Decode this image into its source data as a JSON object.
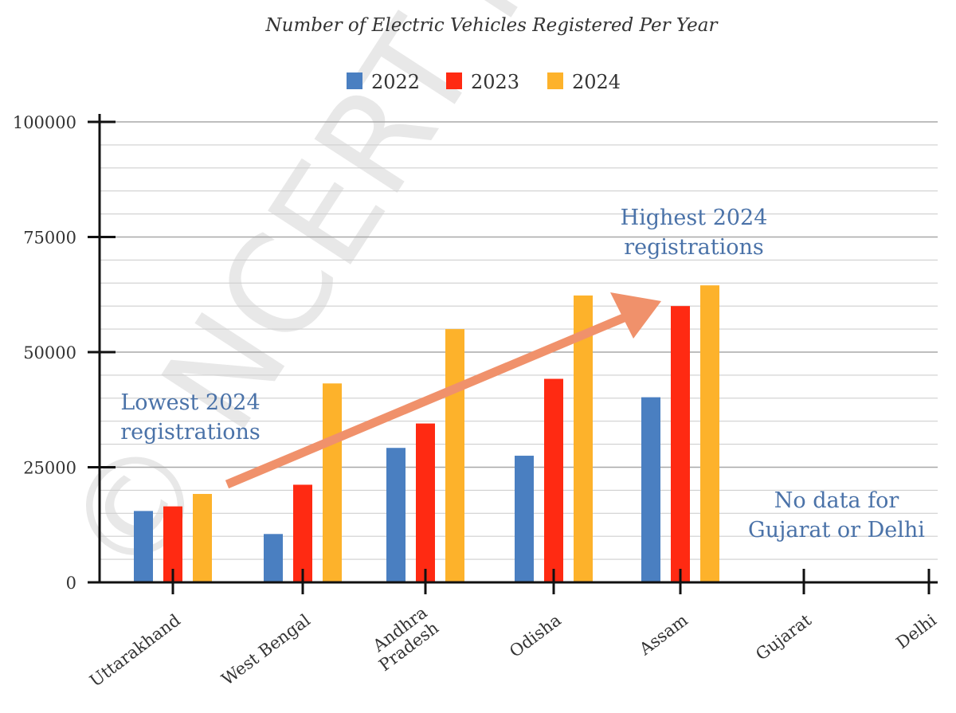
{
  "chart_data": {
    "type": "bar",
    "title": "Number of Electric Vehicles Registered Per Year",
    "categories": [
      "Uttarakhand",
      "West Bengal",
      "Andhra Pradesh",
      "Odisha",
      "Assam",
      "Gujarat",
      "Delhi"
    ],
    "category_lines": [
      [
        "Uttarakhand"
      ],
      [
        "West Bengal"
      ],
      [
        "Andhra",
        "Pradesh"
      ],
      [
        "Odisha"
      ],
      [
        "Assam"
      ],
      [
        "Gujarat"
      ],
      [
        "Delhi"
      ]
    ],
    "series": [
      {
        "name": "2022",
        "color": "#4a7fc1",
        "values": [
          15500,
          10500,
          29200,
          27500,
          40200,
          null,
          null
        ]
      },
      {
        "name": "2023",
        "color": "#ff2a12",
        "values": [
          16500,
          21200,
          34500,
          44200,
          60000,
          null,
          null
        ]
      },
      {
        "name": "2024",
        "color": "#fdb22b",
        "values": [
          19200,
          43200,
          55000,
          62300,
          64500,
          null,
          null
        ]
      }
    ],
    "ylim": [
      0,
      100000
    ],
    "yticks": [
      0,
      25000,
      50000,
      75000,
      100000
    ],
    "ytick_labels": [
      "0",
      "25000",
      "50000",
      "75000",
      "100000"
    ],
    "minor_gridline_step": 5000,
    "grid": true,
    "legend_position": "top-center",
    "annotations": [
      {
        "id": "lowest",
        "lines": [
          "Lowest 2024",
          "registrations"
        ]
      },
      {
        "id": "highest",
        "lines": [
          "Highest 2024",
          "registrations"
        ]
      },
      {
        "id": "nodata",
        "lines": [
          "No data for",
          "Gujarat or Delhi"
        ]
      }
    ],
    "arrow_color": "#f0916b",
    "annotation_color": "#4a72a8",
    "watermark": "© NCERT not to be republished"
  }
}
